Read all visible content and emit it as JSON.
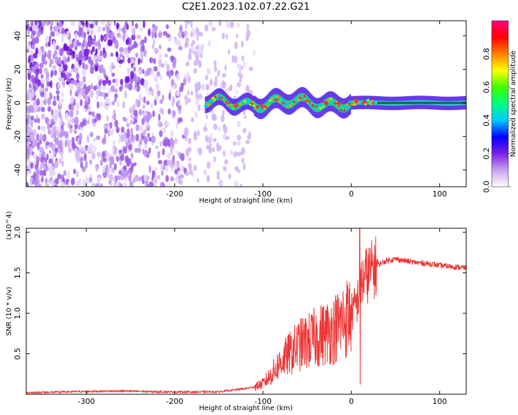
{
  "figure": {
    "title": "C2E1.2023.102.07.22.G21"
  },
  "chart_data": [
    {
      "type": "heatmap",
      "title": "C2E1.2023.102.07.22.G21",
      "xlabel": "Height of straight line (km)",
      "ylabel": "Frequency (Hz)",
      "xlim": [
        -368,
        130
      ],
      "ylim": [
        -50,
        49
      ],
      "xticks": [
        -300,
        -200,
        -100,
        0,
        100
      ],
      "yticks": [
        -40,
        -20,
        0,
        20,
        40
      ],
      "colorbar": {
        "label": "Normalized spectral amplitude",
        "range": [
          0,
          1
        ],
        "ticks": [
          0.0,
          0.2,
          0.4,
          0.6,
          0.8
        ],
        "tick_labels": [
          "0.0",
          "0.2",
          "0.4",
          "0.6",
          "0.8"
        ],
        "colors": [
          "#ffffff",
          "#c8a2f0",
          "#7b1fe0",
          "#0000ff",
          "#00c8ff",
          "#00ff80",
          "#40ff00",
          "#ffff00",
          "#ff8000",
          "#ff0000",
          "#ff0080"
        ]
      },
      "features": {
        "noise_region_x": [
          -368,
          -110
        ],
        "signal_start_x": -165,
        "signal_center_freq": 0,
        "signal_band_halfwidth_hz": [
          4,
          3
        ]
      }
    },
    {
      "type": "line",
      "xlabel": "Height of straight line (km)",
      "ylabel": "SNR (10 * v/v)",
      "y_multiplier": "(x10^4)",
      "xlim": [
        -368,
        130
      ],
      "ylim": [
        0,
        20500
      ],
      "xticks": [
        -300,
        -200,
        -100,
        0,
        100
      ],
      "yticks": [
        5000,
        10000,
        15000,
        20000
      ],
      "ytick_labels": [
        "0.5",
        "1.0",
        "1.5",
        "2.0"
      ],
      "series": [
        {
          "color": "#ee3333",
          "x": [
            -368,
            -340,
            -300,
            -260,
            -220,
            -180,
            -150,
            -120,
            -110,
            -100,
            -90,
            -80,
            -70,
            -60,
            -50,
            -40,
            -30,
            -20,
            -10,
            0,
            5,
            8,
            10,
            15,
            20,
            30,
            40,
            50,
            60,
            70,
            80,
            90,
            100,
            110,
            120,
            130
          ],
          "values": [
            200,
            250,
            350,
            400,
            300,
            280,
            300,
            700,
            900,
            1300,
            2500,
            4000,
            5000,
            6000,
            6500,
            7000,
            7500,
            8000,
            9000,
            10000,
            11000,
            12000,
            13500,
            14500,
            15000,
            16000,
            16500,
            16700,
            16500,
            16300,
            16200,
            16100,
            15900,
            15800,
            15700,
            15600
          ],
          "spikes": [
            {
              "x": 9.5,
              "value": 20500
            },
            {
              "x": 10,
              "value": 1200
            }
          ]
        }
      ]
    }
  ]
}
